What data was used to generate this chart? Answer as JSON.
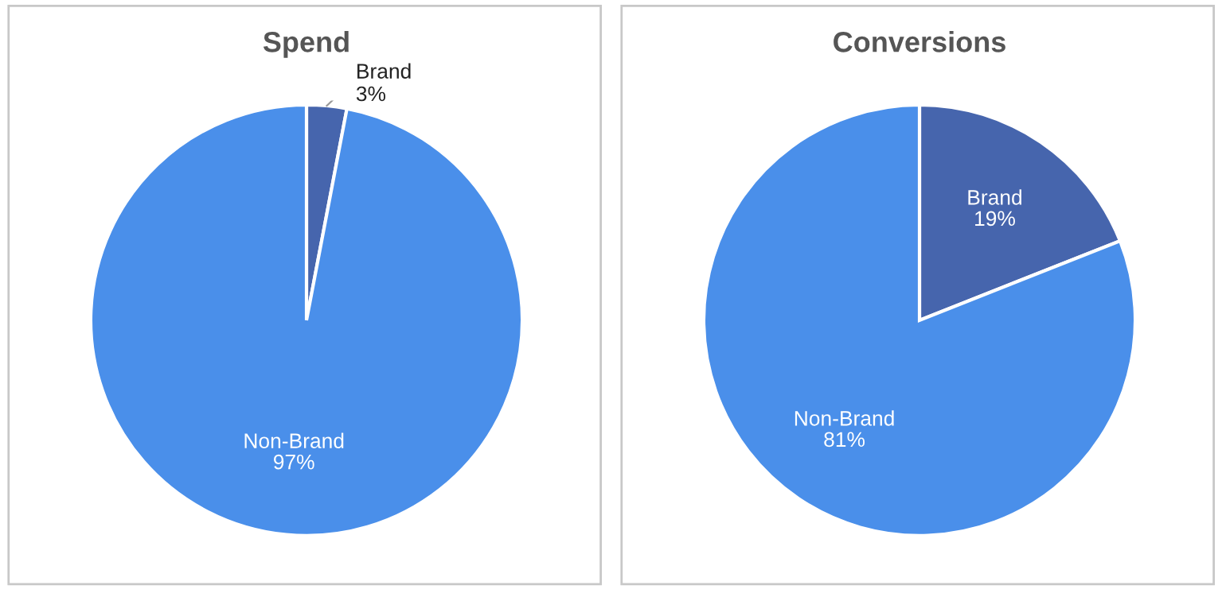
{
  "chart_data": [
    {
      "type": "pie",
      "title": "Spend",
      "categories": [
        "Brand",
        "Non-Brand"
      ],
      "values": [
        3,
        97
      ],
      "value_labels": [
        "3%",
        "97%"
      ],
      "colors": [
        "#4665ad",
        "#4a8fea"
      ],
      "legend": false
    },
    {
      "type": "pie",
      "title": "Conversions",
      "categories": [
        "Brand",
        "Non-Brand"
      ],
      "values": [
        19,
        81
      ],
      "value_labels": [
        "19%",
        "81%"
      ],
      "colors": [
        "#4665ad",
        "#4a8fea"
      ],
      "legend": false
    }
  ]
}
